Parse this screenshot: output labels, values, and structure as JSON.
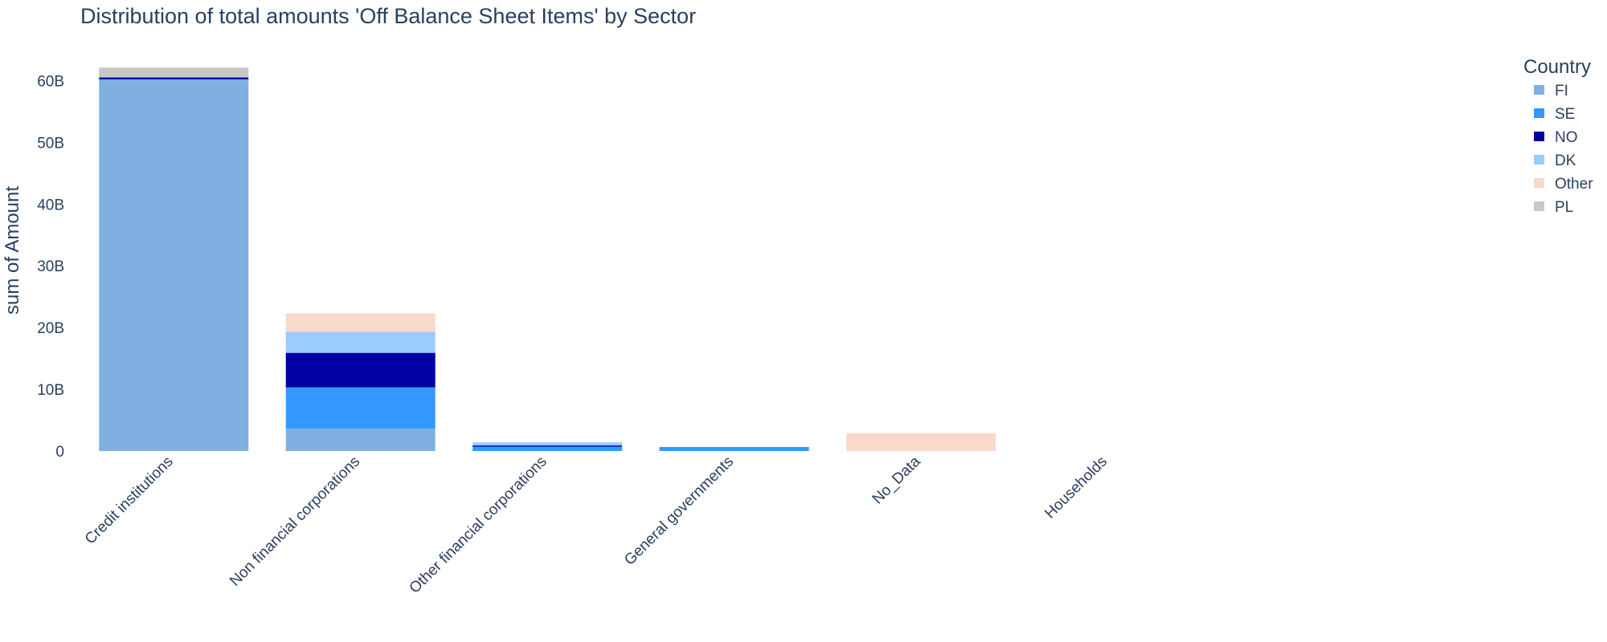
{
  "chart_data": {
    "type": "bar",
    "stacked": true,
    "title": "Distribution of total amounts 'Off Balance Sheet Items' by Sector",
    "xlabel": "",
    "ylabel": "sum of Amount",
    "ylim": [
      0,
      62000000000
    ],
    "yticks": [
      {
        "value": 0,
        "label": "0"
      },
      {
        "value": 10000000000,
        "label": "10B"
      },
      {
        "value": 20000000000,
        "label": "20B"
      },
      {
        "value": 30000000000,
        "label": "30B"
      },
      {
        "value": 40000000000,
        "label": "40B"
      },
      {
        "value": 50000000000,
        "label": "50B"
      },
      {
        "value": 60000000000,
        "label": "60B"
      }
    ],
    "grid": false,
    "legend_title": "Country",
    "legend_position": "top-right",
    "categories": [
      "Credit institutions",
      "Non financial corporations",
      "Other financial corporations",
      "General governments",
      "No_Data",
      "Households"
    ],
    "series": [
      {
        "name": "FI",
        "color": "#7fb0e1",
        "values": [
          60200000000,
          3600000000,
          0,
          0,
          0,
          0
        ]
      },
      {
        "name": "SE",
        "color": "#3399ff",
        "values": [
          0,
          6700000000,
          700000000,
          650000000,
          0,
          0
        ]
      },
      {
        "name": "NO",
        "color": "#0000a3",
        "values": [
          300000000,
          5600000000,
          200000000,
          0,
          0,
          0
        ]
      },
      {
        "name": "DK",
        "color": "#99ccff",
        "values": [
          0,
          3400000000,
          500000000,
          0,
          0,
          0
        ]
      },
      {
        "name": "Other",
        "color": "#f9d9ca",
        "values": [
          0,
          3000000000,
          0,
          0,
          2900000000,
          0
        ]
      },
      {
        "name": "PL",
        "color": "#c8c8c8",
        "values": [
          1600000000,
          0,
          0,
          0,
          0,
          0
        ]
      }
    ]
  }
}
